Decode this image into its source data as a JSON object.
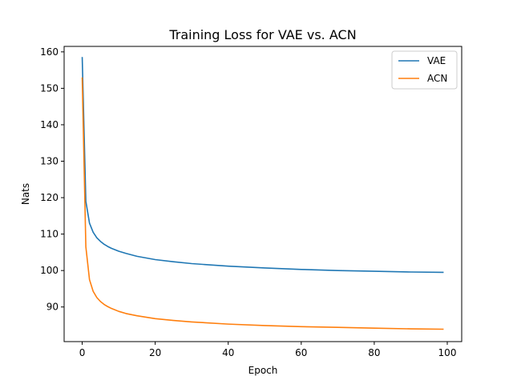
{
  "chart_data": {
    "type": "line",
    "title": "Training Loss for VAE vs. ACN",
    "xlabel": "Epoch",
    "ylabel": "Nats",
    "xlim": [
      -4.95,
      103.95
    ],
    "ylim": [
      80.5,
      161.5
    ],
    "xticks": [
      0,
      20,
      40,
      60,
      80,
      100
    ],
    "yticks": [
      90,
      100,
      110,
      120,
      130,
      140,
      150,
      160
    ],
    "grid": false,
    "legend_position": "top-right",
    "series": [
      {
        "name": "VAE",
        "color": "#1f77b4",
        "x": [
          0,
          1,
          2,
          3,
          4,
          5,
          6,
          7,
          8,
          10,
          12,
          15,
          20,
          25,
          30,
          40,
          50,
          60,
          70,
          80,
          90,
          99
        ],
        "y": [
          158.6,
          119.0,
          113.0,
          110.5,
          109.0,
          108.0,
          107.2,
          106.6,
          106.1,
          105.3,
          104.7,
          103.9,
          103.0,
          102.4,
          101.9,
          101.2,
          100.7,
          100.3,
          100.0,
          99.8,
          99.6,
          99.5
        ]
      },
      {
        "name": "ACN",
        "color": "#ff7f0e",
        "x": [
          0,
          1,
          2,
          3,
          4,
          5,
          6,
          7,
          8,
          10,
          12,
          15,
          20,
          25,
          30,
          40,
          50,
          60,
          70,
          80,
          90,
          99
        ],
        "y": [
          153.0,
          106.5,
          97.5,
          94.3,
          92.6,
          91.5,
          90.7,
          90.1,
          89.6,
          88.8,
          88.2,
          87.6,
          86.8,
          86.3,
          85.9,
          85.3,
          84.9,
          84.6,
          84.4,
          84.2,
          84.0,
          83.9
        ]
      }
    ]
  }
}
